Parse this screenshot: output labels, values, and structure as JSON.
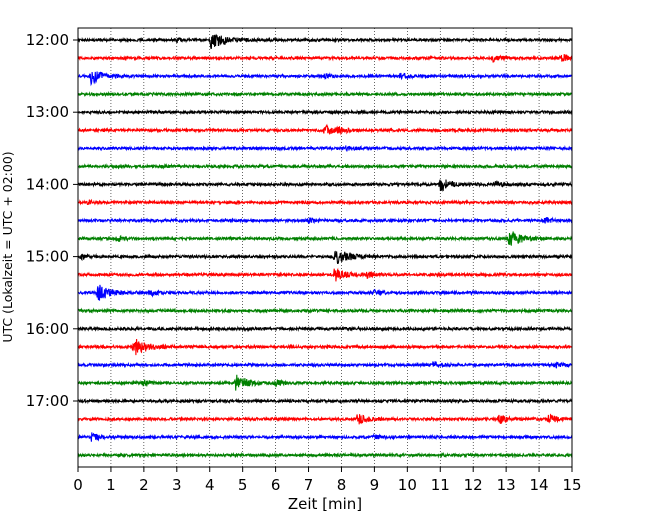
{
  "chart_data": {
    "type": "line",
    "title": "",
    "xlabel": "Zeit  [min]",
    "ylabel": "UTC (Lokalzeit = UTC + 02:00)",
    "xlim": [
      0,
      15
    ],
    "x_ticks": [
      0,
      1,
      2,
      3,
      4,
      5,
      6,
      7,
      8,
      9,
      10,
      11,
      12,
      13,
      14,
      15
    ],
    "y_tick_labels": [
      "12:00",
      "13:00",
      "14:00",
      "15:00",
      "16:00",
      "17:00"
    ],
    "grid": "vertical dotted",
    "legend": "none",
    "trace_interval_minutes": 15,
    "colors": [
      "#000000",
      "#ff0000",
      "#0000ff",
      "#008000"
    ],
    "series": [
      {
        "start": "12:00",
        "color": "#000000",
        "events": [
          {
            "t": 4.05,
            "amp": 1.0
          },
          {
            "t": 3.0,
            "amp": 0.15
          }
        ]
      },
      {
        "start": "12:15",
        "color": "#ff0000",
        "events": [
          {
            "t": 12.6,
            "amp": 0.35
          },
          {
            "t": 14.7,
            "amp": 0.45
          }
        ]
      },
      {
        "start": "12:30",
        "color": "#0000ff",
        "events": [
          {
            "t": 0.4,
            "amp": 0.8
          },
          {
            "t": 7.5,
            "amp": 0.25
          },
          {
            "t": 9.8,
            "amp": 0.35
          }
        ]
      },
      {
        "start": "12:45",
        "color": "#008000",
        "events": [
          {
            "t": 13.0,
            "amp": 0.12
          }
        ]
      },
      {
        "start": "13:00",
        "color": "#000000",
        "events": []
      },
      {
        "start": "13:15",
        "color": "#ff0000",
        "events": [
          {
            "t": 7.5,
            "amp": 0.55
          },
          {
            "t": 7.9,
            "amp": 0.35
          }
        ]
      },
      {
        "start": "13:30",
        "color": "#0000ff",
        "events": [
          {
            "t": 8.1,
            "amp": 0.3
          }
        ]
      },
      {
        "start": "13:45",
        "color": "#008000",
        "events": [
          {
            "t": 2.5,
            "amp": 0.15
          }
        ]
      },
      {
        "start": "14:00",
        "color": "#000000",
        "events": [
          {
            "t": 11.0,
            "amp": 0.75
          },
          {
            "t": 12.7,
            "amp": 0.4
          }
        ]
      },
      {
        "start": "14:15",
        "color": "#ff0000",
        "events": [
          {
            "t": 0.3,
            "amp": 0.2
          }
        ]
      },
      {
        "start": "14:30",
        "color": "#0000ff",
        "events": [
          {
            "t": 7.0,
            "amp": 0.25
          },
          {
            "t": 14.2,
            "amp": 0.3
          }
        ]
      },
      {
        "start": "14:45",
        "color": "#008000",
        "events": [
          {
            "t": 1.2,
            "amp": 0.3
          },
          {
            "t": 13.1,
            "amp": 0.9
          }
        ]
      },
      {
        "start": "15:00",
        "color": "#000000",
        "events": [
          {
            "t": 0.1,
            "amp": 0.3
          },
          {
            "t": 7.8,
            "amp": 1.0
          }
        ]
      },
      {
        "start": "15:15",
        "color": "#ff0000",
        "events": [
          {
            "t": 7.8,
            "amp": 0.7
          },
          {
            "t": 8.8,
            "amp": 0.35
          }
        ]
      },
      {
        "start": "15:30",
        "color": "#0000ff",
        "events": [
          {
            "t": 0.6,
            "amp": 0.9
          },
          {
            "t": 2.2,
            "amp": 0.3
          },
          {
            "t": 9.0,
            "amp": 0.3
          }
        ]
      },
      {
        "start": "15:45",
        "color": "#008000",
        "events": []
      },
      {
        "start": "16:00",
        "color": "#000000",
        "events": [
          {
            "t": 5.0,
            "amp": 0.1
          }
        ]
      },
      {
        "start": "16:15",
        "color": "#ff0000",
        "events": [
          {
            "t": 1.7,
            "amp": 1.0
          }
        ]
      },
      {
        "start": "16:30",
        "color": "#0000ff",
        "events": [
          {
            "t": 10.8,
            "amp": 0.35
          },
          {
            "t": 14.5,
            "amp": 0.3
          }
        ]
      },
      {
        "start": "16:45",
        "color": "#008000",
        "events": [
          {
            "t": 2.0,
            "amp": 0.35
          },
          {
            "t": 4.8,
            "amp": 0.9
          },
          {
            "t": 6.0,
            "amp": 0.3
          }
        ]
      },
      {
        "start": "17:00",
        "color": "#000000",
        "events": []
      },
      {
        "start": "17:15",
        "color": "#ff0000",
        "events": [
          {
            "t": 8.5,
            "amp": 0.55
          },
          {
            "t": 12.8,
            "amp": 0.5
          },
          {
            "t": 14.3,
            "amp": 0.45
          }
        ]
      },
      {
        "start": "17:30",
        "color": "#0000ff",
        "events": [
          {
            "t": 0.4,
            "amp": 0.45
          },
          {
            "t": 9.0,
            "amp": 0.2
          }
        ]
      },
      {
        "start": "17:45",
        "color": "#008000",
        "events": []
      }
    ]
  }
}
